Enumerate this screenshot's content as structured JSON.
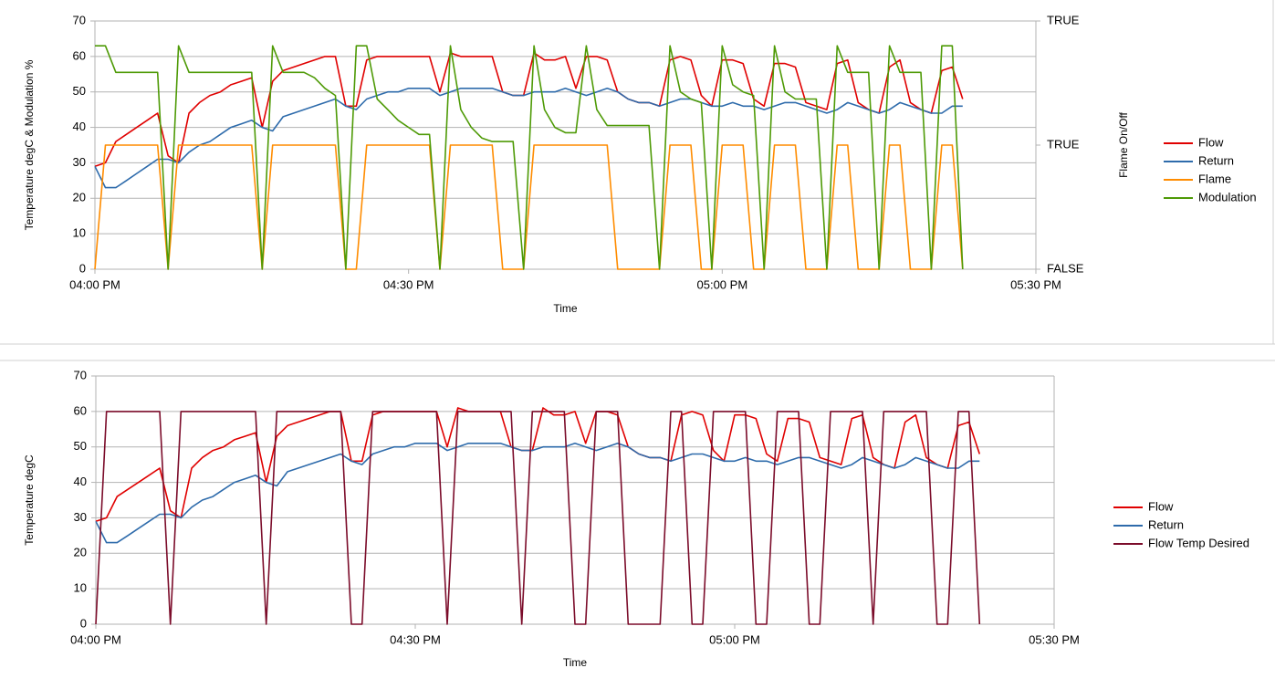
{
  "chart_data": [
    {
      "type": "line",
      "x_label": "Time",
      "y_label": "Temperature degC & Modulation %",
      "y2_label": "Flame On/Off",
      "x": [
        "04:00 PM",
        "04:01 PM",
        "04:02 PM",
        "04:03 PM",
        "04:04 PM",
        "04:05 PM",
        "04:06 PM",
        "04:07 PM",
        "04:08 PM",
        "04:09 PM",
        "04:10 PM",
        "04:11 PM",
        "04:12 PM",
        "04:13 PM",
        "04:14 PM",
        "04:15 PM",
        "04:16 PM",
        "04:17 PM",
        "04:18 PM",
        "04:19 PM",
        "04:20 PM",
        "04:21 PM",
        "04:22 PM",
        "04:23 PM",
        "04:24 PM",
        "04:25 PM",
        "04:26 PM",
        "04:27 PM",
        "04:28 PM",
        "04:29 PM",
        "04:30 PM",
        "04:31 PM",
        "04:32 PM",
        "04:33 PM",
        "04:34 PM",
        "04:35 PM",
        "04:36 PM",
        "04:37 PM",
        "04:38 PM",
        "04:39 PM",
        "04:40 PM",
        "04:41 PM",
        "04:42 PM",
        "04:43 PM",
        "04:44 PM",
        "04:45 PM",
        "04:46 PM",
        "04:47 PM",
        "04:48 PM",
        "04:49 PM",
        "04:50 PM",
        "04:51 PM",
        "04:52 PM",
        "04:53 PM",
        "04:54 PM",
        "04:55 PM",
        "04:56 PM",
        "04:57 PM",
        "04:58 PM",
        "04:59 PM",
        "05:00 PM",
        "05:01 PM",
        "05:02 PM",
        "05:03 PM",
        "05:04 PM",
        "05:05 PM",
        "05:06 PM",
        "05:07 PM",
        "05:08 PM",
        "05:09 PM",
        "05:10 PM",
        "05:11 PM",
        "05:12 PM",
        "05:13 PM",
        "05:14 PM",
        "05:15 PM",
        "05:16 PM",
        "05:17 PM",
        "05:18 PM",
        "05:19 PM",
        "05:20 PM",
        "05:21 PM",
        "05:22 PM",
        "05:23 PM"
      ],
      "xlim": [
        "04:00 PM",
        "05:30 PM"
      ],
      "xticks": [
        "04:00 PM",
        "04:30 PM",
        "05:00 PM",
        "05:30 PM"
      ],
      "ylim": [
        0,
        70
      ],
      "yticks": [
        0,
        10,
        20,
        30,
        40,
        50,
        60,
        70
      ],
      "y2lim": [
        0,
        2
      ],
      "y2ticks": [
        {
          "value": 0,
          "label": "FALSE"
        },
        {
          "value": 1,
          "label": "TRUE"
        },
        {
          "value": 2,
          "label": "TRUE"
        }
      ],
      "grid": true,
      "legend": "right",
      "series": [
        {
          "name": "Flow",
          "color": "#e00000",
          "values": [
            29,
            30,
            36,
            38,
            40,
            42,
            44,
            32,
            30,
            44,
            47,
            49,
            50,
            52,
            53,
            54,
            40,
            53,
            56,
            57,
            58,
            59,
            60,
            60,
            46,
            46,
            59,
            60,
            60,
            60,
            60,
            60,
            60,
            50,
            61,
            60,
            60,
            60,
            60,
            50,
            49,
            49,
            61,
            59,
            59,
            60,
            51,
            60,
            60,
            59,
            50,
            48,
            47,
            47,
            46,
            59,
            60,
            59,
            49,
            46,
            59,
            59,
            58,
            48,
            46,
            58,
            58,
            57,
            47,
            46,
            45,
            58,
            59,
            47,
            45,
            44,
            57,
            59,
            47,
            45,
            44,
            56,
            57,
            48
          ]
        },
        {
          "name": "Return",
          "color": "#2e6bab",
          "values": [
            29,
            23,
            23,
            25,
            27,
            29,
            31,
            31,
            30,
            33,
            35,
            36,
            38,
            40,
            41,
            42,
            40,
            39,
            43,
            44,
            45,
            46,
            47,
            48,
            46,
            45,
            48,
            49,
            50,
            50,
            51,
            51,
            51,
            49,
            50,
            51,
            51,
            51,
            51,
            50,
            49,
            49,
            50,
            50,
            50,
            51,
            50,
            49,
            50,
            51,
            50,
            48,
            47,
            47,
            46,
            47,
            48,
            48,
            47,
            46,
            46,
            47,
            46,
            46,
            45,
            46,
            47,
            47,
            46,
            45,
            44,
            45,
            47,
            46,
            45,
            44,
            45,
            47,
            46,
            45,
            44,
            44,
            46,
            46
          ]
        },
        {
          "name": "Flame",
          "color": "#ff8c00",
          "axis": "y2",
          "values": [
            0,
            1,
            1,
            1,
            1,
            1,
            1,
            0,
            1,
            1,
            1,
            1,
            1,
            1,
            1,
            1,
            0,
            1,
            1,
            1,
            1,
            1,
            1,
            1,
            0,
            0,
            1,
            1,
            1,
            1,
            1,
            1,
            1,
            0,
            1,
            1,
            1,
            1,
            1,
            0,
            0,
            0,
            1,
            1,
            1,
            1,
            1,
            1,
            1,
            1,
            0,
            0,
            0,
            0,
            0,
            1,
            1,
            1,
            0,
            0,
            1,
            1,
            1,
            0,
            0,
            1,
            1,
            1,
            0,
            0,
            0,
            1,
            1,
            0,
            0,
            0,
            1,
            1,
            0,
            0,
            0,
            1,
            1,
            0
          ]
        },
        {
          "name": "Modulation",
          "color": "#4e9a06",
          "values": [
            63,
            63,
            55.5,
            55.5,
            55.5,
            55.5,
            55.5,
            0,
            63,
            55.5,
            55.5,
            55.5,
            55.5,
            55.5,
            55.5,
            55.5,
            0,
            63,
            55.5,
            55.5,
            55.5,
            54,
            51,
            49,
            0,
            63,
            63,
            48,
            45,
            42,
            40,
            38,
            38,
            0,
            63,
            45,
            40,
            37,
            36,
            36,
            36,
            0,
            63,
            45,
            40,
            38.5,
            38.5,
            63,
            45,
            40.5,
            40.5,
            40.5,
            40.5,
            40.5,
            0,
            63,
            50,
            48,
            47,
            0,
            63,
            52,
            50,
            49,
            0,
            63,
            50,
            48,
            48,
            48,
            0,
            63,
            55.5,
            55.5,
            55.5,
            0,
            63,
            55.5,
            55.5,
            55.5,
            0,
            63,
            63,
            0
          ]
        }
      ]
    },
    {
      "type": "line",
      "x_label": "Time",
      "y_label": "Temperature degC",
      "x": [
        "04:00 PM",
        "04:01 PM",
        "04:02 PM",
        "04:03 PM",
        "04:04 PM",
        "04:05 PM",
        "04:06 PM",
        "04:07 PM",
        "04:08 PM",
        "04:09 PM",
        "04:10 PM",
        "04:11 PM",
        "04:12 PM",
        "04:13 PM",
        "04:14 PM",
        "04:15 PM",
        "04:16 PM",
        "04:17 PM",
        "04:18 PM",
        "04:19 PM",
        "04:20 PM",
        "04:21 PM",
        "04:22 PM",
        "04:23 PM",
        "04:24 PM",
        "04:25 PM",
        "04:26 PM",
        "04:27 PM",
        "04:28 PM",
        "04:29 PM",
        "04:30 PM",
        "04:31 PM",
        "04:32 PM",
        "04:33 PM",
        "04:34 PM",
        "04:35 PM",
        "04:36 PM",
        "04:37 PM",
        "04:38 PM",
        "04:39 PM",
        "04:40 PM",
        "04:41 PM",
        "04:42 PM",
        "04:43 PM",
        "04:44 PM",
        "04:45 PM",
        "04:46 PM",
        "04:47 PM",
        "04:48 PM",
        "04:49 PM",
        "04:50 PM",
        "04:51 PM",
        "04:52 PM",
        "04:53 PM",
        "04:54 PM",
        "04:55 PM",
        "04:56 PM",
        "04:57 PM",
        "04:58 PM",
        "04:59 PM",
        "05:00 PM",
        "05:01 PM",
        "05:02 PM",
        "05:03 PM",
        "05:04 PM",
        "05:05 PM",
        "05:06 PM",
        "05:07 PM",
        "05:08 PM",
        "05:09 PM",
        "05:10 PM",
        "05:11 PM",
        "05:12 PM",
        "05:13 PM",
        "05:14 PM",
        "05:15 PM",
        "05:16 PM",
        "05:17 PM",
        "05:18 PM",
        "05:19 PM",
        "05:20 PM",
        "05:21 PM",
        "05:22 PM",
        "05:23 PM"
      ],
      "xlim": [
        "04:00 PM",
        "05:30 PM"
      ],
      "xticks": [
        "04:00 PM",
        "04:30 PM",
        "05:00 PM",
        "05:30 PM"
      ],
      "ylim": [
        0,
        70
      ],
      "yticks": [
        0,
        10,
        20,
        30,
        40,
        50,
        60,
        70
      ],
      "grid": true,
      "legend": "right",
      "series": [
        {
          "name": "Flow",
          "color": "#e00000",
          "values": [
            29,
            30,
            36,
            38,
            40,
            42,
            44,
            32,
            30,
            44,
            47,
            49,
            50,
            52,
            53,
            54,
            40,
            53,
            56,
            57,
            58,
            59,
            60,
            60,
            46,
            46,
            59,
            60,
            60,
            60,
            60,
            60,
            60,
            50,
            61,
            60,
            60,
            60,
            60,
            50,
            49,
            49,
            61,
            59,
            59,
            60,
            51,
            60,
            60,
            59,
            50,
            48,
            47,
            47,
            46,
            59,
            60,
            59,
            49,
            46,
            59,
            59,
            58,
            48,
            46,
            58,
            58,
            57,
            47,
            46,
            45,
            58,
            59,
            47,
            45,
            44,
            57,
            59,
            47,
            45,
            44,
            56,
            57,
            48
          ]
        },
        {
          "name": "Return",
          "color": "#2e6bab",
          "values": [
            29,
            23,
            23,
            25,
            27,
            29,
            31,
            31,
            30,
            33,
            35,
            36,
            38,
            40,
            41,
            42,
            40,
            39,
            43,
            44,
            45,
            46,
            47,
            48,
            46,
            45,
            48,
            49,
            50,
            50,
            51,
            51,
            51,
            49,
            50,
            51,
            51,
            51,
            51,
            50,
            49,
            49,
            50,
            50,
            50,
            51,
            50,
            49,
            50,
            51,
            50,
            48,
            47,
            47,
            46,
            47,
            48,
            48,
            47,
            46,
            46,
            47,
            46,
            46,
            45,
            46,
            47,
            47,
            46,
            45,
            44,
            45,
            47,
            46,
            45,
            44,
            45,
            47,
            46,
            45,
            44,
            44,
            46,
            46
          ]
        },
        {
          "name": "Flow Temp Desired",
          "color": "#7b0c2a",
          "values": [
            0,
            60,
            60,
            60,
            60,
            60,
            60,
            0,
            60,
            60,
            60,
            60,
            60,
            60,
            60,
            60,
            0,
            60,
            60,
            60,
            60,
            60,
            60,
            60,
            0,
            0,
            60,
            60,
            60,
            60,
            60,
            60,
            60,
            0,
            60,
            60,
            60,
            60,
            60,
            60,
            0,
            60,
            60,
            60,
            60,
            0,
            0,
            60,
            60,
            60,
            0,
            0,
            0,
            0,
            60,
            60,
            0,
            0,
            60,
            60,
            60,
            60,
            0,
            0,
            60,
            60,
            60,
            0,
            0,
            60,
            60,
            60,
            60,
            0,
            60,
            60,
            60,
            60,
            60,
            0,
            0,
            60,
            60,
            0
          ]
        }
      ]
    }
  ]
}
